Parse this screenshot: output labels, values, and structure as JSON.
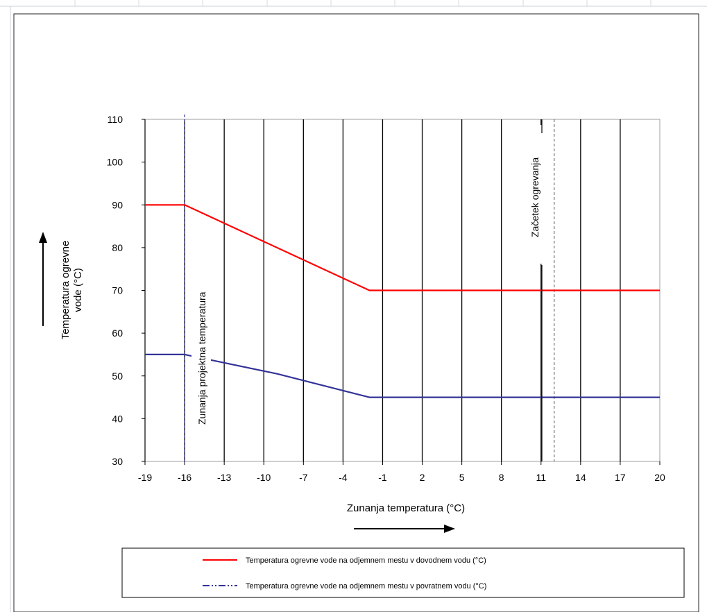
{
  "chart_data": {
    "type": "line",
    "xlabel": "Zunanja temperatura (°C)",
    "ylabel_lines": [
      "Temperatura ogrevne",
      "vode (°C)"
    ],
    "xlim": [
      -19,
      20
    ],
    "ylim": [
      30,
      110
    ],
    "x_ticks": [
      -19,
      -16,
      -13,
      -10,
      -7,
      -4,
      -1,
      2,
      5,
      8,
      11,
      14,
      17,
      20
    ],
    "y_ticks": [
      30,
      40,
      50,
      60,
      70,
      80,
      90,
      100,
      110
    ],
    "grid": "vertical",
    "series": [
      {
        "name": "Temperatura ogrevne vode na odjemnem mestu v dovodnem vodu (°C)",
        "color": "#ff0000",
        "x": [
          -19,
          -16,
          -2,
          20
        ],
        "y": [
          90,
          90,
          70,
          70
        ]
      },
      {
        "name": "Temperatura ogrevne vode na odjemnem mestu v povratnem vodu (°C)",
        "color": "#333399",
        "x": [
          -19,
          -16,
          -9,
          -2,
          20
        ],
        "y": [
          55,
          55,
          50.5,
          45,
          45
        ]
      }
    ],
    "annotations": [
      {
        "text": "Zunanja projektna  temperatura",
        "x": -16
      },
      {
        "text": "Začetek ogrevanja",
        "x": 12
      }
    ],
    "legend_position": "bottom"
  }
}
